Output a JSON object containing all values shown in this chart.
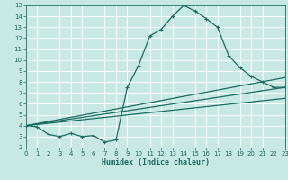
{
  "xlabel": "Humidex (Indice chaleur)",
  "bg_color": "#c8e8e4",
  "grid_color": "#ffffff",
  "line_color": "#1a6b60",
  "xlim": [
    0,
    23
  ],
  "ylim": [
    2,
    15
  ],
  "xticks": [
    0,
    1,
    2,
    3,
    4,
    5,
    6,
    7,
    8,
    9,
    10,
    11,
    12,
    13,
    14,
    15,
    16,
    17,
    18,
    19,
    20,
    21,
    22,
    23
  ],
  "yticks": [
    2,
    3,
    4,
    5,
    6,
    7,
    8,
    9,
    10,
    11,
    12,
    13,
    14,
    15
  ],
  "peak_x": [
    0,
    1,
    2,
    3,
    4,
    5,
    6,
    7,
    8,
    9,
    10,
    11,
    12,
    13,
    14,
    15,
    16,
    17,
    18,
    19,
    20,
    21,
    22,
    23
  ],
  "peak_y": [
    4.0,
    3.9,
    3.2,
    3.0,
    3.3,
    3.0,
    3.1,
    2.5,
    2.7,
    7.5,
    9.5,
    12.2,
    12.8,
    14.0,
    15.0,
    14.5,
    13.8,
    13.0,
    10.4,
    9.3,
    8.5,
    8.0,
    7.5,
    7.5
  ],
  "line1_x": [
    0,
    23
  ],
  "line1_y": [
    4.0,
    8.4
  ],
  "line2_x": [
    0,
    23
  ],
  "line2_y": [
    4.0,
    7.5
  ],
  "line3_x": [
    0,
    23
  ],
  "line3_y": [
    4.0,
    6.5
  ]
}
